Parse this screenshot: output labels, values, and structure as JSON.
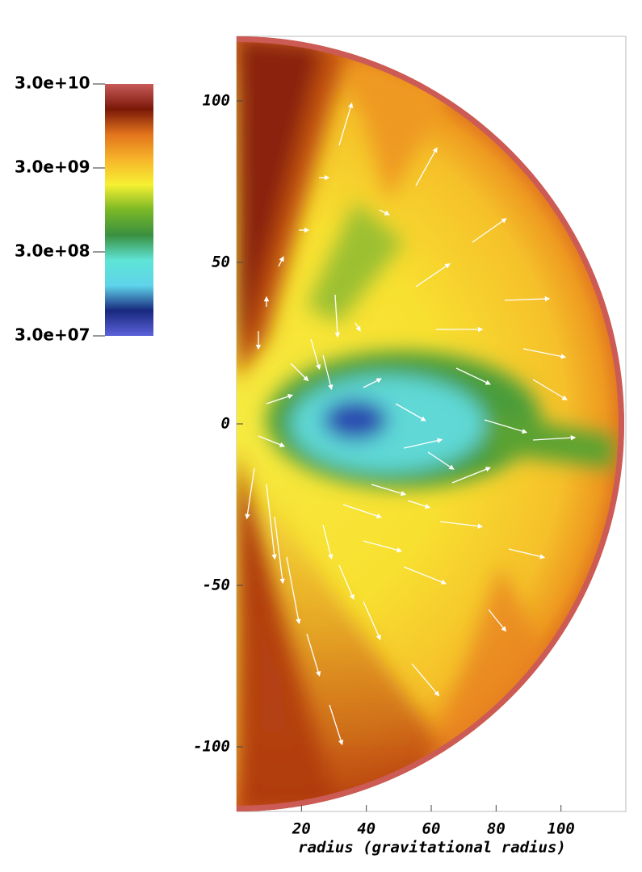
{
  "chart_data": {
    "type": "pseudocolor",
    "x_label": "radius (gravitational radius)",
    "xlim": [
      0,
      120
    ],
    "ylim": [
      -120,
      120
    ],
    "xticks": [
      20,
      40,
      60,
      80,
      100
    ],
    "yticks": [
      100,
      50,
      0,
      -50,
      -100
    ],
    "colorbar": {
      "scale": "log",
      "lim": [
        30000000,
        30000000000
      ],
      "ticks": [
        {
          "value": 30000000000,
          "label": "3.0e+10"
        },
        {
          "value": 3000000000,
          "label": "3.0e+09"
        },
        {
          "value": 300000000,
          "label": "3.0e+08"
        },
        {
          "value": 30000000,
          "label": "3.0e+07"
        }
      ],
      "colors": [
        "#c85a58",
        "#7a1808",
        "#e2741c",
        "#f7b52a",
        "#f6f032",
        "#7ab826",
        "#3a9040",
        "#5ee4d6",
        "#5fd4ea",
        "#18287e",
        "#5c62da"
      ]
    }
  }
}
